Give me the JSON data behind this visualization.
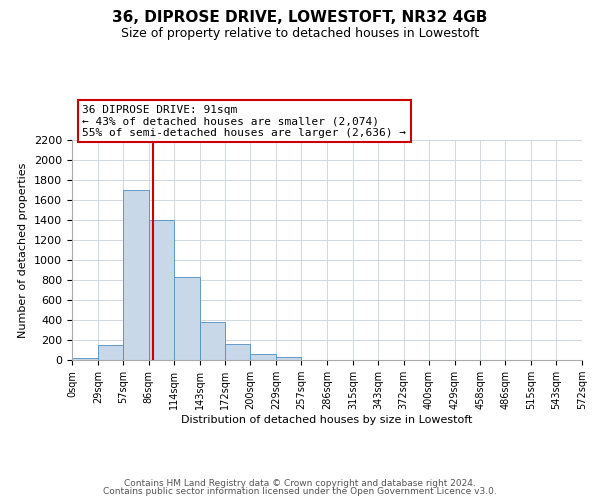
{
  "title": "36, DIPROSE DRIVE, LOWESTOFT, NR32 4GB",
  "subtitle": "Size of property relative to detached houses in Lowestoft",
  "xlabel": "Distribution of detached houses by size in Lowestoft",
  "ylabel": "Number of detached properties",
  "bar_edges": [
    0,
    29,
    57,
    86,
    114,
    143,
    172,
    200,
    229,
    257,
    286,
    315,
    343,
    372,
    400,
    429,
    458,
    486,
    515,
    543,
    572
  ],
  "bar_heights": [
    20,
    155,
    1700,
    1400,
    830,
    380,
    160,
    65,
    30,
    0,
    0,
    0,
    0,
    0,
    0,
    0,
    0,
    0,
    0,
    0
  ],
  "bar_color": "#c8d8e8",
  "bar_edge_color": "#5090c0",
  "vline_x": 91,
  "vline_color": "#cc0000",
  "annotation_line1": "36 DIPROSE DRIVE: 91sqm",
  "annotation_line2": "← 43% of detached houses are smaller (2,074)",
  "annotation_line3": "55% of semi-detached houses are larger (2,636) →",
  "annotation_box_color": "#cc0000",
  "annotation_bg": "#ffffff",
  "ylim": [
    0,
    2200
  ],
  "yticks": [
    0,
    200,
    400,
    600,
    800,
    1000,
    1200,
    1400,
    1600,
    1800,
    2000,
    2200
  ],
  "tick_labels": [
    "0sqm",
    "29sqm",
    "57sqm",
    "86sqm",
    "114sqm",
    "143sqm",
    "172sqm",
    "200sqm",
    "229sqm",
    "257sqm",
    "286sqm",
    "315sqm",
    "343sqm",
    "372sqm",
    "400sqm",
    "429sqm",
    "458sqm",
    "486sqm",
    "515sqm",
    "543sqm",
    "572sqm"
  ],
  "footer1": "Contains HM Land Registry data © Crown copyright and database right 2024.",
  "footer2": "Contains public sector information licensed under the Open Government Licence v3.0.",
  "bg_color": "#ffffff",
  "grid_color": "#d0d8e0",
  "title_fontsize": 11,
  "subtitle_fontsize": 9,
  "axis_label_fontsize": 8,
  "tick_fontsize": 7,
  "annotation_fontsize": 8,
  "footer_fontsize": 6.5
}
